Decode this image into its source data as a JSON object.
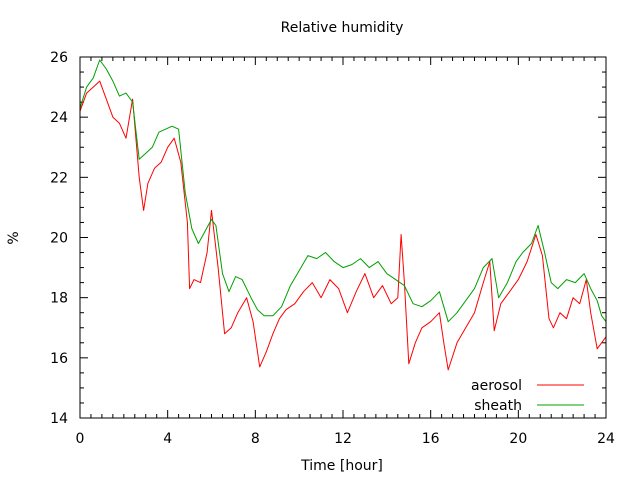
{
  "chart_data": {
    "type": "line",
    "title": "Relative humidity",
    "xlabel": "Time [hour]",
    "ylabel": "%",
    "xlim": [
      0,
      24
    ],
    "ylim": [
      14,
      26
    ],
    "x_ticks": [
      0,
      4,
      8,
      12,
      16,
      20,
      24
    ],
    "y_ticks": [
      14,
      16,
      18,
      20,
      22,
      24,
      26
    ],
    "x_minor_step": 0.5,
    "y_minor_step": 0.5,
    "grid": false,
    "legend_position": "bottom-right",
    "series": [
      {
        "name": "aerosol",
        "color": "#ff0000",
        "points": [
          [
            0.0,
            24.2
          ],
          [
            0.3,
            24.8
          ],
          [
            0.6,
            25.0
          ],
          [
            0.9,
            25.2
          ],
          [
            1.2,
            24.6
          ],
          [
            1.5,
            24.0
          ],
          [
            1.8,
            23.8
          ],
          [
            2.1,
            23.3
          ],
          [
            2.4,
            24.6
          ],
          [
            2.7,
            22.0
          ],
          [
            2.9,
            20.9
          ],
          [
            3.1,
            21.8
          ],
          [
            3.4,
            22.3
          ],
          [
            3.7,
            22.5
          ],
          [
            4.0,
            23.0
          ],
          [
            4.3,
            23.3
          ],
          [
            4.6,
            22.5
          ],
          [
            4.9,
            20.5
          ],
          [
            5.0,
            18.3
          ],
          [
            5.2,
            18.6
          ],
          [
            5.5,
            18.5
          ],
          [
            5.8,
            19.5
          ],
          [
            6.0,
            20.9
          ],
          [
            6.3,
            19.0
          ],
          [
            6.6,
            16.8
          ],
          [
            6.9,
            17.0
          ],
          [
            7.2,
            17.5
          ],
          [
            7.6,
            18.0
          ],
          [
            7.9,
            17.2
          ],
          [
            8.2,
            15.7
          ],
          [
            8.5,
            16.2
          ],
          [
            8.8,
            16.8
          ],
          [
            9.1,
            17.3
          ],
          [
            9.4,
            17.6
          ],
          [
            9.8,
            17.8
          ],
          [
            10.2,
            18.2
          ],
          [
            10.6,
            18.5
          ],
          [
            11.0,
            18.0
          ],
          [
            11.4,
            18.6
          ],
          [
            11.8,
            18.3
          ],
          [
            12.2,
            17.5
          ],
          [
            12.6,
            18.2
          ],
          [
            13.0,
            18.8
          ],
          [
            13.4,
            18.0
          ],
          [
            13.8,
            18.4
          ],
          [
            14.2,
            17.8
          ],
          [
            14.5,
            18.0
          ],
          [
            14.65,
            20.1
          ],
          [
            14.8,
            18.5
          ],
          [
            15.0,
            15.8
          ],
          [
            15.3,
            16.5
          ],
          [
            15.6,
            17.0
          ],
          [
            16.0,
            17.2
          ],
          [
            16.4,
            17.5
          ],
          [
            16.6,
            16.5
          ],
          [
            16.8,
            15.6
          ],
          [
            17.2,
            16.5
          ],
          [
            17.6,
            17.0
          ],
          [
            18.0,
            17.5
          ],
          [
            18.4,
            18.5
          ],
          [
            18.7,
            19.2
          ],
          [
            18.9,
            16.9
          ],
          [
            19.2,
            17.8
          ],
          [
            19.6,
            18.2
          ],
          [
            20.0,
            18.6
          ],
          [
            20.4,
            19.2
          ],
          [
            20.8,
            20.1
          ],
          [
            21.1,
            19.4
          ],
          [
            21.4,
            17.3
          ],
          [
            21.6,
            17.0
          ],
          [
            21.9,
            17.5
          ],
          [
            22.2,
            17.3
          ],
          [
            22.5,
            18.0
          ],
          [
            22.8,
            17.8
          ],
          [
            23.1,
            18.6
          ],
          [
            23.3,
            17.5
          ],
          [
            23.6,
            16.3
          ],
          [
            23.8,
            16.5
          ],
          [
            24.0,
            16.7
          ]
        ]
      },
      {
        "name": "sheath",
        "color": "#00a000",
        "points": [
          [
            0.0,
            24.3
          ],
          [
            0.3,
            25.0
          ],
          [
            0.6,
            25.3
          ],
          [
            0.9,
            25.9
          ],
          [
            1.2,
            25.6
          ],
          [
            1.5,
            25.2
          ],
          [
            1.8,
            24.7
          ],
          [
            2.1,
            24.8
          ],
          [
            2.4,
            24.5
          ],
          [
            2.7,
            22.6
          ],
          [
            3.0,
            22.8
          ],
          [
            3.3,
            23.0
          ],
          [
            3.6,
            23.5
          ],
          [
            3.9,
            23.6
          ],
          [
            4.2,
            23.7
          ],
          [
            4.5,
            23.6
          ],
          [
            4.8,
            21.5
          ],
          [
            5.1,
            20.3
          ],
          [
            5.4,
            19.8
          ],
          [
            5.7,
            20.2
          ],
          [
            6.0,
            20.6
          ],
          [
            6.2,
            20.4
          ],
          [
            6.5,
            18.8
          ],
          [
            6.8,
            18.2
          ],
          [
            7.1,
            18.7
          ],
          [
            7.4,
            18.6
          ],
          [
            7.8,
            18.0
          ],
          [
            8.1,
            17.6
          ],
          [
            8.4,
            17.4
          ],
          [
            8.8,
            17.4
          ],
          [
            9.2,
            17.7
          ],
          [
            9.6,
            18.4
          ],
          [
            10.0,
            18.9
          ],
          [
            10.4,
            19.4
          ],
          [
            10.8,
            19.3
          ],
          [
            11.2,
            19.5
          ],
          [
            11.6,
            19.2
          ],
          [
            12.0,
            19.0
          ],
          [
            12.4,
            19.1
          ],
          [
            12.8,
            19.3
          ],
          [
            13.2,
            19.0
          ],
          [
            13.6,
            19.2
          ],
          [
            14.0,
            18.8
          ],
          [
            14.4,
            18.6
          ],
          [
            14.8,
            18.4
          ],
          [
            15.2,
            17.8
          ],
          [
            15.6,
            17.7
          ],
          [
            16.0,
            17.9
          ],
          [
            16.4,
            18.2
          ],
          [
            16.8,
            17.2
          ],
          [
            17.2,
            17.5
          ],
          [
            17.6,
            17.9
          ],
          [
            18.0,
            18.3
          ],
          [
            18.4,
            19.0
          ],
          [
            18.8,
            19.3
          ],
          [
            19.1,
            18.0
          ],
          [
            19.5,
            18.5
          ],
          [
            19.9,
            19.2
          ],
          [
            20.2,
            19.5
          ],
          [
            20.6,
            19.8
          ],
          [
            20.9,
            20.4
          ],
          [
            21.2,
            19.5
          ],
          [
            21.5,
            18.5
          ],
          [
            21.8,
            18.3
          ],
          [
            22.2,
            18.6
          ],
          [
            22.6,
            18.5
          ],
          [
            23.0,
            18.8
          ],
          [
            23.3,
            18.3
          ],
          [
            23.6,
            17.9
          ],
          [
            23.8,
            17.4
          ],
          [
            24.0,
            17.2
          ]
        ]
      }
    ]
  }
}
